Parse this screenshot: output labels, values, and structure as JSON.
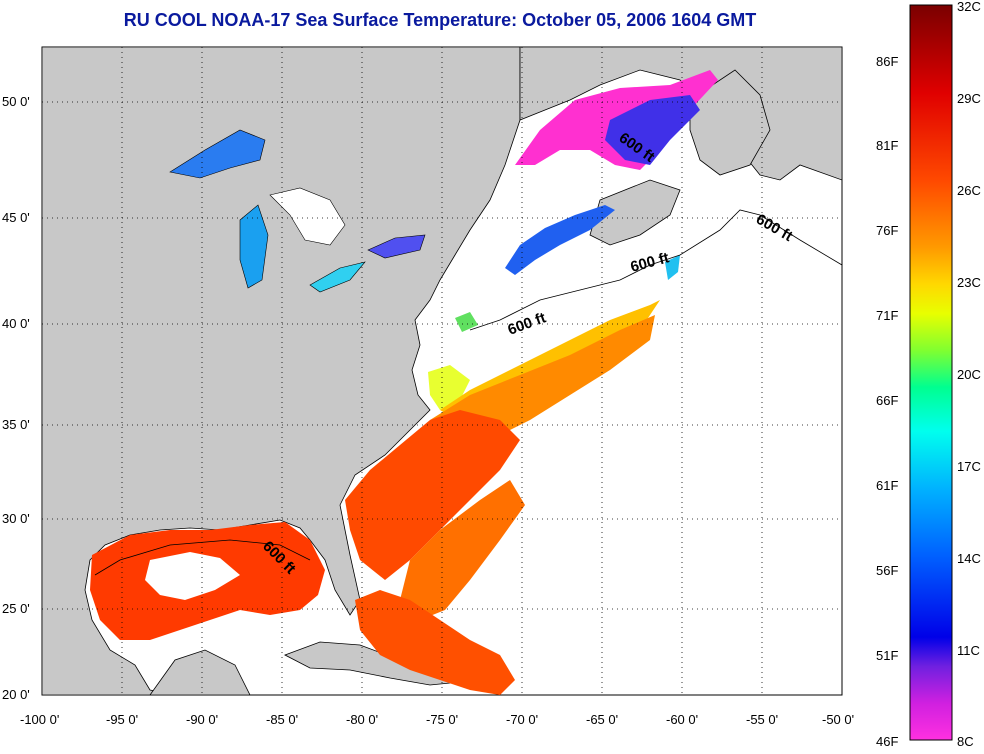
{
  "title": "RU COOL  NOAA-17  Sea Surface Temperature:  October 05, 2006 1604 GMT",
  "map": {
    "lon_ticks": [
      "-100 0'",
      "-95 0'",
      "-90 0'",
      "-85 0'",
      "-80 0'",
      "-75 0'",
      "-70 0'",
      "-65 0'",
      "-60 0'",
      "-55 0'",
      "-50 0'"
    ],
    "lat_ticks": [
      "50 0'",
      "45 0'",
      "40 0'",
      "35 0'",
      "30 0'",
      "25 0'",
      "20 0'"
    ],
    "isobath_labels": [
      "600 ft",
      "600 ft",
      "600 ft",
      "600 ft",
      "600 ft"
    ],
    "land_color": "#c8c8c8",
    "water_color": "#ffffff"
  },
  "colorbar": {
    "celsius_labels": [
      "32C",
      "29C",
      "26C",
      "23C",
      "20C",
      "17C",
      "14C",
      "11C",
      "8C"
    ],
    "fahrenheit_labels": [
      "86F",
      "81F",
      "76F",
      "71F",
      "66F",
      "61F",
      "56F",
      "51F",
      "46F"
    ],
    "colors": [
      "#7a0000",
      "#d40000",
      "#ff3000",
      "#ff7a00",
      "#ffb000",
      "#ffe000",
      "#c8ff00",
      "#60ff40",
      "#00ff90",
      "#00ffe0",
      "#00c8ff",
      "#0080ff",
      "#0030ff",
      "#0000e0",
      "#7020e0",
      "#c020e0",
      "#ff30e0"
    ]
  }
}
